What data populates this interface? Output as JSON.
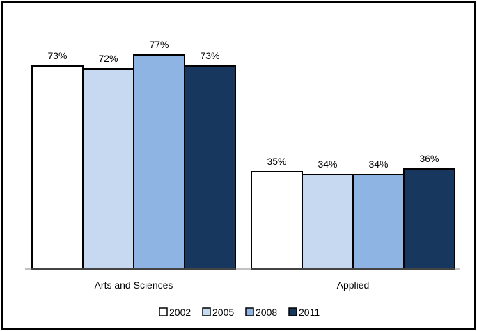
{
  "chart_data": {
    "type": "bar",
    "title": "",
    "xlabel": "",
    "ylabel": "",
    "ylim": [
      0,
      100
    ],
    "grid": false,
    "legend_position": "bottom",
    "categories": [
      "Arts and Sciences",
      "Applied"
    ],
    "series": [
      {
        "name": "2002",
        "values": [
          73,
          35
        ],
        "labels": [
          "73%",
          "35%"
        ],
        "color": "#FFFFFF"
      },
      {
        "name": "2005",
        "values": [
          72,
          34
        ],
        "labels": [
          "72%",
          "34%"
        ],
        "color": "#C6D9F1"
      },
      {
        "name": "2008",
        "values": [
          77,
          34
        ],
        "labels": [
          "77%",
          "34%"
        ],
        "color": "#8EB4E3"
      },
      {
        "name": "2011",
        "values": [
          73,
          36
        ],
        "labels": [
          "73%",
          "36%"
        ],
        "color": "#17375E"
      }
    ]
  }
}
